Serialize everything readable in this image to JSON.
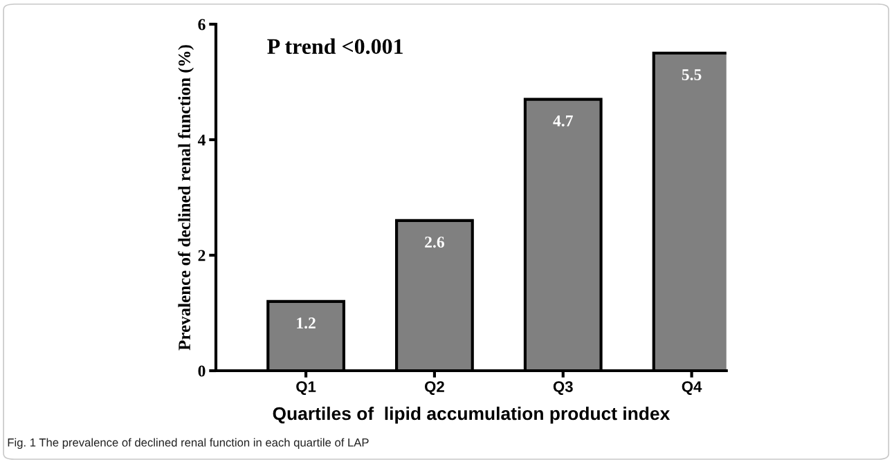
{
  "chart_data": {
    "type": "bar",
    "categories": [
      "Q1",
      "Q2",
      "Q3",
      "Q4"
    ],
    "values": [
      1.2,
      2.6,
      4.7,
      5.5
    ],
    "color": "#808080",
    "data_labels": true,
    "xlabel": "Quartiles of  lipid accumulation product index",
    "ylabel": "Prevalence of declined renal function (%)",
    "ylim": [
      0,
      6
    ],
    "yticks": [
      0,
      2,
      4,
      6
    ],
    "grid": false,
    "legend": false,
    "annotations": [
      "P trend <0.001",
      "Fig. 1 The prevalence of declined renal function in each quartile of LAP"
    ]
  }
}
